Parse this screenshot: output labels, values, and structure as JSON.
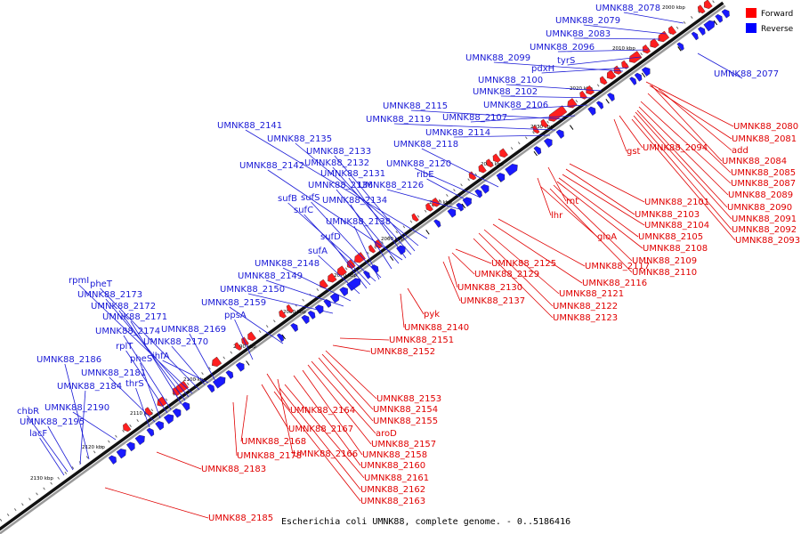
{
  "legend": {
    "forward_label": "Forward",
    "reverse_label": "Reverse",
    "forward_color": "#ff0000",
    "reverse_color": "#0000ff"
  },
  "footer_title": "Escherichia coli UMNK88, complete genome. - 0..5186416",
  "ticks": [
    "2000 kbp",
    "2010 kbp",
    "2020 kbp",
    "2030 kbp",
    "2040 kbp",
    "2050 kbp",
    "2060 kbp",
    "2070 kbp",
    "2080 kbp",
    "2090 kbp",
    "2100 kbp",
    "2110 kbp",
    "2120 kbp",
    "2130 kbp"
  ],
  "forward_labels": [
    "UMNK88_2080",
    "UMNK88_2081",
    "add",
    "UMNK88_2084",
    "UMNK88_2085",
    "UMNK88_2087",
    "UMNK88_2089",
    "UMNK88_2090",
    "UMNK88_2091",
    "UMNK88_2092",
    "UMNK88_2093",
    "gst",
    "UMNK88_2094",
    "UMNK88_2101",
    "UMNK88_2103",
    "UMNK88_2104",
    "UMNK88_2105",
    "UMNK88_2108",
    "UMNK88_2109",
    "UMNK88_2110",
    "rnt",
    "lhr",
    "gloA",
    "UMNK88_2117",
    "UMNK88_2116",
    "UMNK88_2121",
    "UMNK88_2122",
    "UMNK88_2123",
    "UMNK88_2125",
    "UMNK88_2129",
    "UMNK88_2130",
    "UMNK88_2137",
    "pyk",
    "UMNK88_2140",
    "UMNK88_2151",
    "UMNK88_2152",
    "UMNK88_2153",
    "UMNK88_2154",
    "UMNK88_2155",
    "UMNK88_2164",
    "aroD",
    "UMNK88_2157",
    "UMNK88_2158",
    "UMNK88_2167",
    "UMNK88_2168",
    "UMNK88_2166",
    "UMNK88_2160",
    "UMNK88_2178",
    "UMNK88_2183",
    "UMNK88_2161",
    "UMNK88_2162",
    "UMNK88_2163",
    "UMNK88_2185"
  ],
  "reverse_labels": [
    "UMNK88_2078",
    "UMNK88_2079",
    "UMNK88_2083",
    "UMNK88_2077",
    "UMNK88_2096",
    "tyrS",
    "UMNK88_2099",
    "pdxH",
    "UMNK88_2100",
    "UMNK88_2102",
    "UMNK88_2106",
    "UMNK88_2115",
    "UMNK88_2107",
    "UMNK88_2119",
    "UMNK88_2114",
    "UMNK88_2141",
    "UMNK88_2118",
    "UMNK88_2135",
    "UMNK88_2133",
    "UMNK88_2132",
    "UMNK88_2120",
    "UMNK88_2142",
    "UMNK88_2131",
    "ribE",
    "UMNK88_2136",
    "UMNK88_2126",
    "sufB",
    "sufS",
    "UMNK88_2134",
    "sufC",
    "UMNK88_2138",
    "sufD",
    "sufA",
    "UMNK88_2148",
    "UMNK88_2149",
    "rpmI",
    "pheT",
    "UMNK88_2150",
    "UMNK88_2173",
    "UMNK88_2159",
    "UMNK88_2172",
    "ppsA",
    "UMNK88_2171",
    "UMNK88_2169",
    "UMNK88_2174",
    "rplT",
    "UMNK88_2170",
    "pheS",
    "ihfA",
    "UMNK88_2186",
    "UMNK88_2181",
    "thrS",
    "UMNK88_2184",
    "UMNK88_2190",
    "chbR",
    "UMNK88_2195",
    "lacF"
  ]
}
